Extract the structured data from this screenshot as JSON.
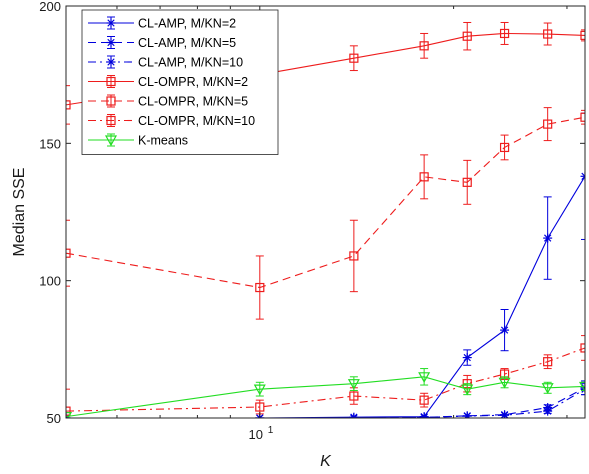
{
  "chart_data": {
    "type": "line",
    "xlabel": "K",
    "ylabel": "Median SSE",
    "x_scale": "log",
    "xlim": [
      5,
      32
    ],
    "ylim": [
      50,
      200
    ],
    "x_ticks": [
      10
    ],
    "x_tick_labels": [
      {
        "base": "10",
        "exp": "1"
      }
    ],
    "y_ticks": [
      50,
      100,
      150,
      200
    ],
    "y_tick_labels": [
      "50",
      "100",
      "150",
      "200"
    ],
    "grid": false,
    "legend_position": "top-left",
    "x": [
      5,
      10,
      14,
      18,
      21,
      24,
      28,
      32
    ],
    "series": [
      {
        "name": "CL-AMP, M/KN=2",
        "color": "#0000dd",
        "dash": "solid",
        "marker": "asterisk",
        "x": [
          5,
          10,
          14,
          18,
          21,
          24,
          28,
          32
        ],
        "values": [
          50,
          50,
          50.3,
          50.5,
          72,
          82,
          115.5,
          138
        ],
        "err": [
          0,
          0,
          0,
          0,
          2.8,
          7.5,
          15,
          23
        ]
      },
      {
        "name": "CL-AMP, M/KN=5",
        "color": "#0000dd",
        "dash": "dash",
        "marker": "asterisk",
        "x": [
          5,
          10,
          14,
          18,
          21,
          24,
          28,
          32
        ],
        "values": [
          50,
          50,
          50,
          50.2,
          50.8,
          51.2,
          53.8,
          61
        ],
        "err": [
          0,
          0,
          0,
          0,
          0,
          0,
          1,
          2.5
        ]
      },
      {
        "name": "CL-AMP, M/KN=10",
        "color": "#0000dd",
        "dash": "dashdot",
        "marker": "asterisk",
        "x": [
          5,
          10,
          14,
          18,
          21,
          24,
          28,
          32
        ],
        "values": [
          50,
          50,
          50,
          50.2,
          50.7,
          51,
          52.5,
          60.5
        ],
        "err": [
          0,
          0,
          0,
          0,
          0,
          0,
          0.8,
          2
        ]
      },
      {
        "name": "CL-OMPR, M/KN=2",
        "color": "#ee1c1c",
        "dash": "solid",
        "marker": "square",
        "x": [
          5,
          10,
          14,
          18,
          21,
          24,
          28,
          32
        ],
        "values": [
          164,
          175,
          181,
          185.5,
          189,
          190,
          189.8,
          189.3
        ],
        "err": [
          7,
          5,
          4.5,
          4.5,
          5,
          4,
          4,
          2
        ]
      },
      {
        "name": "CL-OMPR, M/KN=5",
        "color": "#ee1c1c",
        "dash": "dash",
        "marker": "square",
        "x": [
          5,
          10,
          14,
          18,
          21,
          24,
          28,
          32
        ],
        "values": [
          110,
          97.5,
          109,
          137.8,
          135.8,
          148.5,
          157,
          159.5
        ],
        "err": [
          12,
          11.5,
          13,
          8,
          8,
          4.5,
          6,
          2.5
        ]
      },
      {
        "name": "CL-OMPR, M/KN=10",
        "color": "#ee1c1c",
        "dash": "dashdot",
        "marker": "square",
        "x": [
          5,
          10,
          14,
          18,
          21,
          24,
          28,
          32
        ],
        "values": [
          52.5,
          54,
          58,
          56.5,
          62.5,
          66,
          70.5,
          75.5
        ],
        "err": [
          8,
          2.5,
          3,
          2.5,
          3,
          2,
          2.5,
          4.5
        ]
      },
      {
        "name": "K-means",
        "color": "#22dd22",
        "dash": "solid",
        "marker": "triangle-down",
        "x": [
          5,
          10,
          14,
          18,
          21,
          24,
          28,
          32
        ],
        "values": [
          50.5,
          60.5,
          62.5,
          65,
          60.5,
          63,
          61,
          61.5
        ],
        "err": [
          1.5,
          2.5,
          2.5,
          3,
          2,
          2,
          2,
          1.5
        ]
      }
    ]
  }
}
